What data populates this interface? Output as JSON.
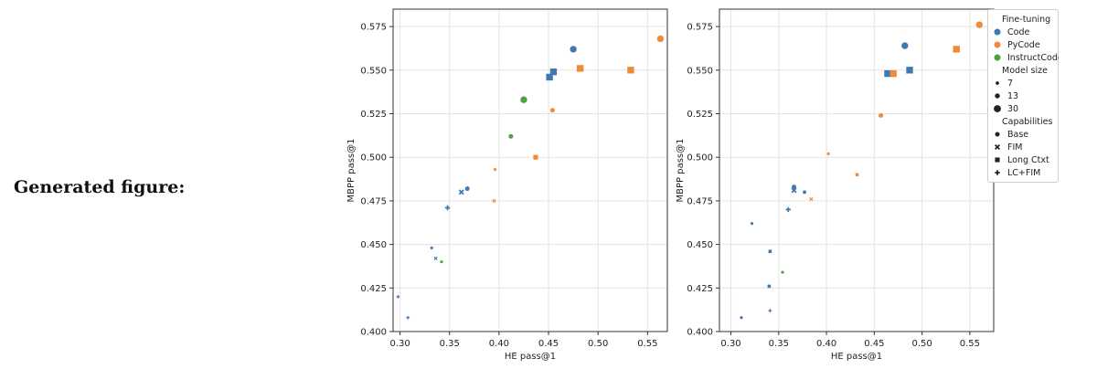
{
  "caption": "Generated figure:",
  "legend": {
    "fine_tuning_title": "Fine-tuning",
    "fine_tuning": [
      {
        "label": "Code",
        "color": "#3f78b2"
      },
      {
        "label": "PyCode",
        "color": "#ef8a35"
      },
      {
        "label": "InstructCode",
        "color": "#4ca23f"
      }
    ],
    "size_title": "Model size",
    "sizes": [
      "7",
      "13",
      "30"
    ],
    "capabilities_title": "Capabilities",
    "capabilities": [
      {
        "label": "Base",
        "marker": "circle"
      },
      {
        "label": "FIM",
        "marker": "x"
      },
      {
        "label": "Long Ctxt",
        "marker": "square"
      },
      {
        "label": "LC+FIM",
        "marker": "plus"
      }
    ]
  },
  "chart_data": [
    {
      "type": "scatter",
      "xlabel": "HE pass@1",
      "ylabel": "MBPP pass@1",
      "xlim": [
        0.293,
        0.57
      ],
      "ylim": [
        0.4,
        0.585
      ],
      "xticks": [
        "0.30",
        "0.35",
        "0.40",
        "0.45",
        "0.50",
        "0.55"
      ],
      "yticks": [
        "0.400",
        "0.425",
        "0.450",
        "0.475",
        "0.500",
        "0.525",
        "0.550",
        "0.575"
      ],
      "grid": true,
      "points": [
        {
          "x": 0.475,
          "y": 0.562,
          "ft": "Code",
          "size": "30",
          "cap": "Base"
        },
        {
          "x": 0.455,
          "y": 0.549,
          "ft": "Code",
          "size": "30",
          "cap": "Long Ctxt"
        },
        {
          "x": 0.451,
          "y": 0.546,
          "ft": "Code",
          "size": "30",
          "cap": "Long Ctxt"
        },
        {
          "x": 0.563,
          "y": 0.568,
          "ft": "PyCode",
          "size": "30",
          "cap": "Base"
        },
        {
          "x": 0.482,
          "y": 0.551,
          "ft": "PyCode",
          "size": "30",
          "cap": "Long Ctxt"
        },
        {
          "x": 0.533,
          "y": 0.55,
          "ft": "PyCode",
          "size": "30",
          "cap": "Long Ctxt"
        },
        {
          "x": 0.425,
          "y": 0.533,
          "ft": "InstructCode",
          "size": "30",
          "cap": "Base"
        },
        {
          "x": 0.454,
          "y": 0.527,
          "ft": "PyCode",
          "size": "13",
          "cap": "Base"
        },
        {
          "x": 0.412,
          "y": 0.512,
          "ft": "InstructCode",
          "size": "13",
          "cap": "Base"
        },
        {
          "x": 0.437,
          "y": 0.5,
          "ft": "PyCode",
          "size": "13",
          "cap": "Long Ctxt"
        },
        {
          "x": 0.396,
          "y": 0.493,
          "ft": "PyCode",
          "size": "7",
          "cap": "Base"
        },
        {
          "x": 0.368,
          "y": 0.482,
          "ft": "Code",
          "size": "13",
          "cap": "Base"
        },
        {
          "x": 0.362,
          "y": 0.48,
          "ft": "Code",
          "size": "13",
          "cap": "FIM"
        },
        {
          "x": 0.395,
          "y": 0.475,
          "ft": "PyCode",
          "size": "7",
          "cap": "FIM"
        },
        {
          "x": 0.348,
          "y": 0.471,
          "ft": "Code",
          "size": "13",
          "cap": "LC+FIM"
        },
        {
          "x": 0.332,
          "y": 0.448,
          "ft": "Code",
          "size": "7",
          "cap": "Base"
        },
        {
          "x": 0.336,
          "y": 0.442,
          "ft": "Code",
          "size": "7",
          "cap": "FIM"
        },
        {
          "x": 0.342,
          "y": 0.44,
          "ft": "InstructCode",
          "size": "7",
          "cap": "Base"
        },
        {
          "x": 0.298,
          "y": 0.42,
          "ft": "Code",
          "size": "7",
          "cap": "LC+FIM"
        },
        {
          "x": 0.308,
          "y": 0.408,
          "ft": "Code",
          "size": "7",
          "cap": "LC+FIM"
        }
      ]
    },
    {
      "type": "scatter",
      "xlabel": "HE pass@1",
      "ylabel": "MBPP pass@1",
      "xlim": [
        0.288,
        0.575
      ],
      "ylim": [
        0.4,
        0.585
      ],
      "xticks": [
        "0.30",
        "0.35",
        "0.40",
        "0.45",
        "0.50",
        "0.55"
      ],
      "yticks": [
        "0.400",
        "0.425",
        "0.450",
        "0.475",
        "0.500",
        "0.525",
        "0.550",
        "0.575"
      ],
      "grid": true,
      "points": [
        {
          "x": 0.56,
          "y": 0.576,
          "ft": "PyCode",
          "size": "30",
          "cap": "Base"
        },
        {
          "x": 0.482,
          "y": 0.564,
          "ft": "Code",
          "size": "30",
          "cap": "Base"
        },
        {
          "x": 0.536,
          "y": 0.562,
          "ft": "PyCode",
          "size": "30",
          "cap": "Long Ctxt"
        },
        {
          "x": 0.487,
          "y": 0.55,
          "ft": "Code",
          "size": "30",
          "cap": "Long Ctxt"
        },
        {
          "x": 0.464,
          "y": 0.548,
          "ft": "Code",
          "size": "30",
          "cap": "Long Ctxt"
        },
        {
          "x": 0.47,
          "y": 0.548,
          "ft": "PyCode",
          "size": "30",
          "cap": "Long Ctxt"
        },
        {
          "x": 0.457,
          "y": 0.524,
          "ft": "PyCode",
          "size": "13",
          "cap": "Base"
        },
        {
          "x": 0.402,
          "y": 0.502,
          "ft": "PyCode",
          "size": "7",
          "cap": "Base"
        },
        {
          "x": 0.432,
          "y": 0.49,
          "ft": "PyCode",
          "size": "7",
          "cap": "Long Ctxt"
        },
        {
          "x": 0.366,
          "y": 0.483,
          "ft": "Code",
          "size": "13",
          "cap": "Base"
        },
        {
          "x": 0.366,
          "y": 0.481,
          "ft": "Code",
          "size": "13",
          "cap": "FIM"
        },
        {
          "x": 0.377,
          "y": 0.48,
          "ft": "Code",
          "size": "7",
          "cap": "Long Ctxt"
        },
        {
          "x": 0.384,
          "y": 0.476,
          "ft": "PyCode",
          "size": "7",
          "cap": "FIM"
        },
        {
          "x": 0.36,
          "y": 0.47,
          "ft": "Code",
          "size": "13",
          "cap": "LC+FIM"
        },
        {
          "x": 0.322,
          "y": 0.462,
          "ft": "Code",
          "size": "7",
          "cap": "Base"
        },
        {
          "x": 0.341,
          "y": 0.446,
          "ft": "Code",
          "size": "7",
          "cap": "Long Ctxt"
        },
        {
          "x": 0.354,
          "y": 0.434,
          "ft": "InstructCode",
          "size": "7",
          "cap": "Base"
        },
        {
          "x": 0.34,
          "y": 0.426,
          "ft": "Code",
          "size": "7",
          "cap": "Long Ctxt"
        },
        {
          "x": 0.341,
          "y": 0.412,
          "ft": "Code",
          "size": "7",
          "cap": "LC+FIM"
        },
        {
          "x": 0.311,
          "y": 0.408,
          "ft": "Code",
          "size": "7",
          "cap": "Base"
        }
      ]
    }
  ]
}
